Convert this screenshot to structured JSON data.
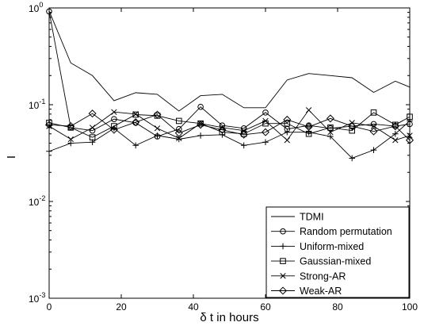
{
  "chart_data": {
    "type": "line",
    "title": "",
    "xlabel": "δ t in hours",
    "ylabel": "I",
    "yscale": "log",
    "xlim": [
      0,
      100
    ],
    "ylim": [
      0.001,
      1
    ],
    "x_ticks": [
      "0",
      "20",
      "40",
      "60",
      "80",
      "100"
    ],
    "y_ticks": [
      {
        "base": "10",
        "exp": "-3"
      },
      {
        "base": "10",
        "exp": "-2"
      },
      {
        "base": "10",
        "exp": "-1"
      },
      {
        "base": "10",
        "exp": "0"
      }
    ],
    "grid": false,
    "legend_position": "bottom-right",
    "x": [
      0,
      6,
      12,
      18,
      24,
      30,
      36,
      42,
      48,
      54,
      60,
      66,
      72,
      78,
      84,
      90,
      96,
      100
    ],
    "series": [
      {
        "name": "TDMI",
        "marker": "none",
        "values": [
          0.93,
          0.27,
          0.2,
          0.11,
          0.133,
          0.128,
          0.086,
          0.124,
          0.128,
          0.093,
          0.093,
          0.18,
          0.21,
          0.2,
          0.19,
          0.134,
          0.175,
          0.152
        ]
      },
      {
        "name": "Random permutation",
        "marker": "circle",
        "values": [
          0.92,
          0.058,
          0.054,
          0.071,
          0.065,
          0.047,
          0.056,
          0.095,
          0.061,
          0.057,
          0.083,
          0.056,
          0.061,
          0.057,
          0.06,
          0.063,
          0.06,
          0.063
        ]
      },
      {
        "name": "Uniform-mixed",
        "marker": "plus",
        "values": [
          0.033,
          0.04,
          0.041,
          0.057,
          0.038,
          0.048,
          0.044,
          0.048,
          0.049,
          0.038,
          0.041,
          0.052,
          0.052,
          0.047,
          0.028,
          0.034,
          0.05,
          0.068
        ]
      },
      {
        "name": "Gaussian-mixed",
        "marker": "square",
        "values": [
          0.065,
          0.058,
          0.046,
          0.06,
          0.079,
          0.077,
          0.068,
          0.064,
          0.052,
          0.05,
          0.064,
          0.064,
          0.05,
          0.058,
          0.054,
          0.083,
          0.062,
          0.075
        ]
      },
      {
        "name": "Strong-AR",
        "marker": "x",
        "values": [
          0.06,
          0.044,
          0.058,
          0.084,
          0.08,
          0.057,
          0.045,
          0.064,
          0.058,
          0.054,
          0.068,
          0.043,
          0.088,
          0.052,
          0.065,
          0.06,
          0.043,
          0.048
        ]
      },
      {
        "name": "Weak-AR",
        "marker": "diamond",
        "values": [
          0.062,
          0.06,
          0.081,
          0.055,
          0.066,
          0.079,
          0.051,
          0.062,
          0.055,
          0.049,
          0.052,
          0.07,
          0.059,
          0.072,
          0.06,
          0.053,
          0.06,
          0.043
        ]
      }
    ]
  }
}
